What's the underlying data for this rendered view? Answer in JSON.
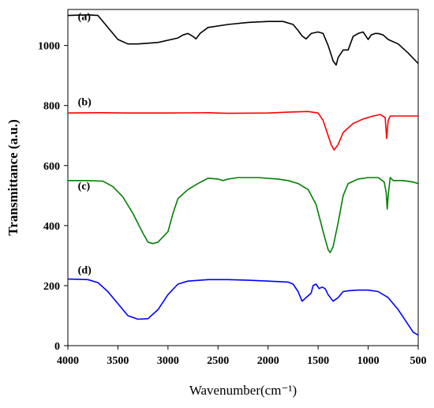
{
  "chart_data": {
    "type": "line",
    "xlabel": "Wavenumber(cm⁻¹)",
    "ylabel": "Transmittance (a.u.)",
    "xlim": [
      4000,
      500
    ],
    "ylim": [
      0,
      1120
    ],
    "x_reversed": true,
    "x_ticks": [
      4000,
      3500,
      3000,
      2500,
      2000,
      1500,
      1000,
      500
    ],
    "y_ticks": [
      0,
      200,
      400,
      600,
      800,
      1000
    ],
    "grid": false,
    "legend": "none",
    "series": [
      {
        "label": "(a)",
        "label_x": 3900,
        "label_y": 1085,
        "color": "#000000",
        "points": [
          [
            4000,
            1100
          ],
          [
            3800,
            1102
          ],
          [
            3700,
            1100
          ],
          [
            3600,
            1060
          ],
          [
            3500,
            1020
          ],
          [
            3400,
            1005
          ],
          [
            3300,
            1005
          ],
          [
            3100,
            1010
          ],
          [
            2900,
            1025
          ],
          [
            2850,
            1035
          ],
          [
            2800,
            1040
          ],
          [
            2750,
            1030
          ],
          [
            2720,
            1022
          ],
          [
            2680,
            1040
          ],
          [
            2600,
            1060
          ],
          [
            2400,
            1070
          ],
          [
            2200,
            1077
          ],
          [
            2000,
            1080
          ],
          [
            1850,
            1080
          ],
          [
            1750,
            1070
          ],
          [
            1700,
            1050
          ],
          [
            1660,
            1032
          ],
          [
            1620,
            1022
          ],
          [
            1570,
            1040
          ],
          [
            1500,
            1045
          ],
          [
            1450,
            1040
          ],
          [
            1400,
            1000
          ],
          [
            1370,
            970
          ],
          [
            1350,
            948
          ],
          [
            1320,
            935
          ],
          [
            1300,
            960
          ],
          [
            1250,
            985
          ],
          [
            1200,
            985
          ],
          [
            1150,
            1030
          ],
          [
            1100,
            1040
          ],
          [
            1050,
            1045
          ],
          [
            1020,
            1030
          ],
          [
            1000,
            1020
          ],
          [
            970,
            1035
          ],
          [
            930,
            1040
          ],
          [
            900,
            1040
          ],
          [
            850,
            1035
          ],
          [
            800,
            1020
          ],
          [
            700,
            1005
          ],
          [
            600,
            975
          ],
          [
            500,
            940
          ]
        ]
      },
      {
        "label": "(b)",
        "label_x": 3900,
        "label_y": 800,
        "color": "#ff0000",
        "points": [
          [
            4000,
            775
          ],
          [
            3700,
            776
          ],
          [
            3400,
            775
          ],
          [
            3000,
            775
          ],
          [
            2600,
            776
          ],
          [
            2400,
            774
          ],
          [
            2000,
            775
          ],
          [
            1800,
            778
          ],
          [
            1600,
            780
          ],
          [
            1500,
            775
          ],
          [
            1450,
            750
          ],
          [
            1400,
            700
          ],
          [
            1370,
            670
          ],
          [
            1340,
            652
          ],
          [
            1300,
            670
          ],
          [
            1250,
            710
          ],
          [
            1150,
            740
          ],
          [
            1050,
            755
          ],
          [
            950,
            765
          ],
          [
            880,
            770
          ],
          [
            830,
            760
          ],
          [
            815,
            690
          ],
          [
            800,
            750
          ],
          [
            780,
            765
          ],
          [
            700,
            765
          ],
          [
            500,
            765
          ]
        ]
      },
      {
        "label": "(c)",
        "label_x": 3900,
        "label_y": 520,
        "color": "#008000",
        "points": [
          [
            4000,
            550
          ],
          [
            3800,
            550
          ],
          [
            3650,
            548
          ],
          [
            3550,
            530
          ],
          [
            3450,
            495
          ],
          [
            3350,
            440
          ],
          [
            3250,
            375
          ],
          [
            3200,
            345
          ],
          [
            3150,
            340
          ],
          [
            3100,
            345
          ],
          [
            3000,
            380
          ],
          [
            2950,
            440
          ],
          [
            2900,
            490
          ],
          [
            2800,
            520
          ],
          [
            2700,
            540
          ],
          [
            2600,
            558
          ],
          [
            2500,
            555
          ],
          [
            2450,
            550
          ],
          [
            2400,
            555
          ],
          [
            2300,
            560
          ],
          [
            2100,
            560
          ],
          [
            1900,
            555
          ],
          [
            1800,
            550
          ],
          [
            1700,
            540
          ],
          [
            1600,
            520
          ],
          [
            1520,
            470
          ],
          [
            1450,
            380
          ],
          [
            1400,
            320
          ],
          [
            1380,
            310
          ],
          [
            1350,
            330
          ],
          [
            1300,
            410
          ],
          [
            1250,
            500
          ],
          [
            1200,
            540
          ],
          [
            1100,
            555
          ],
          [
            1000,
            560
          ],
          [
            900,
            560
          ],
          [
            840,
            545
          ],
          [
            820,
            510
          ],
          [
            810,
            455
          ],
          [
            800,
            500
          ],
          [
            780,
            560
          ],
          [
            750,
            550
          ],
          [
            650,
            550
          ],
          [
            550,
            545
          ],
          [
            500,
            540
          ]
        ]
      },
      {
        "label": "(d)",
        "label_x": 3900,
        "label_y": 240,
        "color": "#0000ff",
        "points": [
          [
            4000,
            222
          ],
          [
            3800,
            220
          ],
          [
            3700,
            210
          ],
          [
            3600,
            180
          ],
          [
            3500,
            140
          ],
          [
            3400,
            100
          ],
          [
            3300,
            88
          ],
          [
            3200,
            90
          ],
          [
            3100,
            120
          ],
          [
            3000,
            170
          ],
          [
            2900,
            205
          ],
          [
            2800,
            215
          ],
          [
            2600,
            220
          ],
          [
            2400,
            220
          ],
          [
            2200,
            218
          ],
          [
            2000,
            215
          ],
          [
            1800,
            212
          ],
          [
            1750,
            205
          ],
          [
            1700,
            180
          ],
          [
            1660,
            148
          ],
          [
            1620,
            160
          ],
          [
            1570,
            175
          ],
          [
            1550,
            200
          ],
          [
            1520,
            205
          ],
          [
            1490,
            190
          ],
          [
            1460,
            195
          ],
          [
            1430,
            190
          ],
          [
            1400,
            170
          ],
          [
            1350,
            148
          ],
          [
            1300,
            160
          ],
          [
            1250,
            180
          ],
          [
            1200,
            183
          ],
          [
            1100,
            185
          ],
          [
            1000,
            185
          ],
          [
            900,
            180
          ],
          [
            800,
            160
          ],
          [
            700,
            120
          ],
          [
            600,
            70
          ],
          [
            550,
            45
          ],
          [
            500,
            35
          ]
        ]
      }
    ]
  }
}
